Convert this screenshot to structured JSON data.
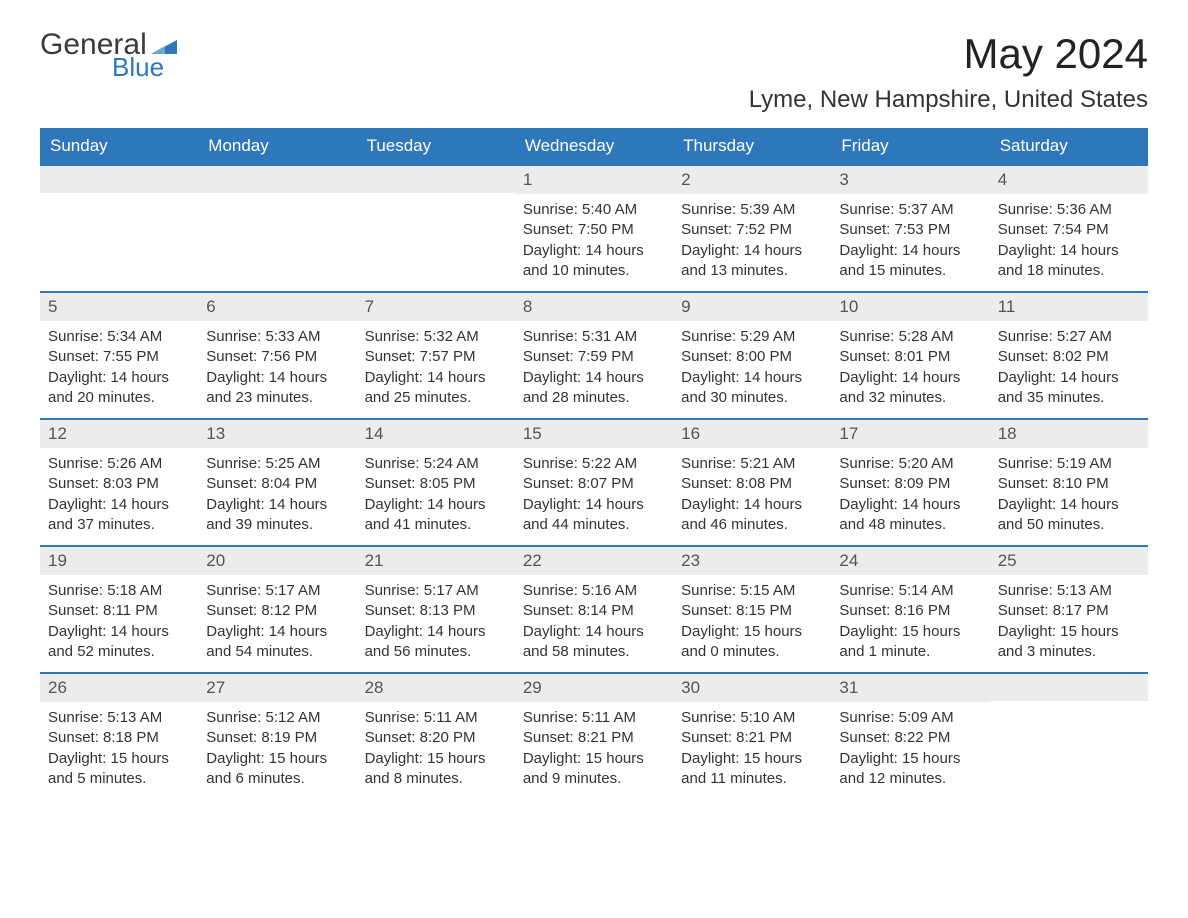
{
  "logo": {
    "text_general": "General",
    "text_blue": "Blue",
    "flag_color": "#2f77bb"
  },
  "title": "May 2024",
  "subtitle": "Lyme, New Hampshire, United States",
  "colors": {
    "header_bg": "#2f77bb",
    "header_text": "#ffffff",
    "daynum_bg": "#ececec",
    "daynum_text": "#555555",
    "body_text": "#333333",
    "page_bg": "#ffffff",
    "row_border": "#2f77bb"
  },
  "layout": {
    "columns": 7,
    "rows": 5,
    "title_fontsize": 42,
    "subtitle_fontsize": 24,
    "weekday_fontsize": 17,
    "daynum_fontsize": 17,
    "body_fontsize": 15
  },
  "weekdays": [
    "Sunday",
    "Monday",
    "Tuesday",
    "Wednesday",
    "Thursday",
    "Friday",
    "Saturday"
  ],
  "weeks": [
    [
      null,
      null,
      null,
      {
        "n": "1",
        "sr": "Sunrise: 5:40 AM",
        "ss": "Sunset: 7:50 PM",
        "d1": "Daylight: 14 hours",
        "d2": "and 10 minutes."
      },
      {
        "n": "2",
        "sr": "Sunrise: 5:39 AM",
        "ss": "Sunset: 7:52 PM",
        "d1": "Daylight: 14 hours",
        "d2": "and 13 minutes."
      },
      {
        "n": "3",
        "sr": "Sunrise: 5:37 AM",
        "ss": "Sunset: 7:53 PM",
        "d1": "Daylight: 14 hours",
        "d2": "and 15 minutes."
      },
      {
        "n": "4",
        "sr": "Sunrise: 5:36 AM",
        "ss": "Sunset: 7:54 PM",
        "d1": "Daylight: 14 hours",
        "d2": "and 18 minutes."
      }
    ],
    [
      {
        "n": "5",
        "sr": "Sunrise: 5:34 AM",
        "ss": "Sunset: 7:55 PM",
        "d1": "Daylight: 14 hours",
        "d2": "and 20 minutes."
      },
      {
        "n": "6",
        "sr": "Sunrise: 5:33 AM",
        "ss": "Sunset: 7:56 PM",
        "d1": "Daylight: 14 hours",
        "d2": "and 23 minutes."
      },
      {
        "n": "7",
        "sr": "Sunrise: 5:32 AM",
        "ss": "Sunset: 7:57 PM",
        "d1": "Daylight: 14 hours",
        "d2": "and 25 minutes."
      },
      {
        "n": "8",
        "sr": "Sunrise: 5:31 AM",
        "ss": "Sunset: 7:59 PM",
        "d1": "Daylight: 14 hours",
        "d2": "and 28 minutes."
      },
      {
        "n": "9",
        "sr": "Sunrise: 5:29 AM",
        "ss": "Sunset: 8:00 PM",
        "d1": "Daylight: 14 hours",
        "d2": "and 30 minutes."
      },
      {
        "n": "10",
        "sr": "Sunrise: 5:28 AM",
        "ss": "Sunset: 8:01 PM",
        "d1": "Daylight: 14 hours",
        "d2": "and 32 minutes."
      },
      {
        "n": "11",
        "sr": "Sunrise: 5:27 AM",
        "ss": "Sunset: 8:02 PM",
        "d1": "Daylight: 14 hours",
        "d2": "and 35 minutes."
      }
    ],
    [
      {
        "n": "12",
        "sr": "Sunrise: 5:26 AM",
        "ss": "Sunset: 8:03 PM",
        "d1": "Daylight: 14 hours",
        "d2": "and 37 minutes."
      },
      {
        "n": "13",
        "sr": "Sunrise: 5:25 AM",
        "ss": "Sunset: 8:04 PM",
        "d1": "Daylight: 14 hours",
        "d2": "and 39 minutes."
      },
      {
        "n": "14",
        "sr": "Sunrise: 5:24 AM",
        "ss": "Sunset: 8:05 PM",
        "d1": "Daylight: 14 hours",
        "d2": "and 41 minutes."
      },
      {
        "n": "15",
        "sr": "Sunrise: 5:22 AM",
        "ss": "Sunset: 8:07 PM",
        "d1": "Daylight: 14 hours",
        "d2": "and 44 minutes."
      },
      {
        "n": "16",
        "sr": "Sunrise: 5:21 AM",
        "ss": "Sunset: 8:08 PM",
        "d1": "Daylight: 14 hours",
        "d2": "and 46 minutes."
      },
      {
        "n": "17",
        "sr": "Sunrise: 5:20 AM",
        "ss": "Sunset: 8:09 PM",
        "d1": "Daylight: 14 hours",
        "d2": "and 48 minutes."
      },
      {
        "n": "18",
        "sr": "Sunrise: 5:19 AM",
        "ss": "Sunset: 8:10 PM",
        "d1": "Daylight: 14 hours",
        "d2": "and 50 minutes."
      }
    ],
    [
      {
        "n": "19",
        "sr": "Sunrise: 5:18 AM",
        "ss": "Sunset: 8:11 PM",
        "d1": "Daylight: 14 hours",
        "d2": "and 52 minutes."
      },
      {
        "n": "20",
        "sr": "Sunrise: 5:17 AM",
        "ss": "Sunset: 8:12 PM",
        "d1": "Daylight: 14 hours",
        "d2": "and 54 minutes."
      },
      {
        "n": "21",
        "sr": "Sunrise: 5:17 AM",
        "ss": "Sunset: 8:13 PM",
        "d1": "Daylight: 14 hours",
        "d2": "and 56 minutes."
      },
      {
        "n": "22",
        "sr": "Sunrise: 5:16 AM",
        "ss": "Sunset: 8:14 PM",
        "d1": "Daylight: 14 hours",
        "d2": "and 58 minutes."
      },
      {
        "n": "23",
        "sr": "Sunrise: 5:15 AM",
        "ss": "Sunset: 8:15 PM",
        "d1": "Daylight: 15 hours",
        "d2": "and 0 minutes."
      },
      {
        "n": "24",
        "sr": "Sunrise: 5:14 AM",
        "ss": "Sunset: 8:16 PM",
        "d1": "Daylight: 15 hours",
        "d2": "and 1 minute."
      },
      {
        "n": "25",
        "sr": "Sunrise: 5:13 AM",
        "ss": "Sunset: 8:17 PM",
        "d1": "Daylight: 15 hours",
        "d2": "and 3 minutes."
      }
    ],
    [
      {
        "n": "26",
        "sr": "Sunrise: 5:13 AM",
        "ss": "Sunset: 8:18 PM",
        "d1": "Daylight: 15 hours",
        "d2": "and 5 minutes."
      },
      {
        "n": "27",
        "sr": "Sunrise: 5:12 AM",
        "ss": "Sunset: 8:19 PM",
        "d1": "Daylight: 15 hours",
        "d2": "and 6 minutes."
      },
      {
        "n": "28",
        "sr": "Sunrise: 5:11 AM",
        "ss": "Sunset: 8:20 PM",
        "d1": "Daylight: 15 hours",
        "d2": "and 8 minutes."
      },
      {
        "n": "29",
        "sr": "Sunrise: 5:11 AM",
        "ss": "Sunset: 8:21 PM",
        "d1": "Daylight: 15 hours",
        "d2": "and 9 minutes."
      },
      {
        "n": "30",
        "sr": "Sunrise: 5:10 AM",
        "ss": "Sunset: 8:21 PM",
        "d1": "Daylight: 15 hours",
        "d2": "and 11 minutes."
      },
      {
        "n": "31",
        "sr": "Sunrise: 5:09 AM",
        "ss": "Sunset: 8:22 PM",
        "d1": "Daylight: 15 hours",
        "d2": "and 12 minutes."
      },
      null
    ]
  ]
}
